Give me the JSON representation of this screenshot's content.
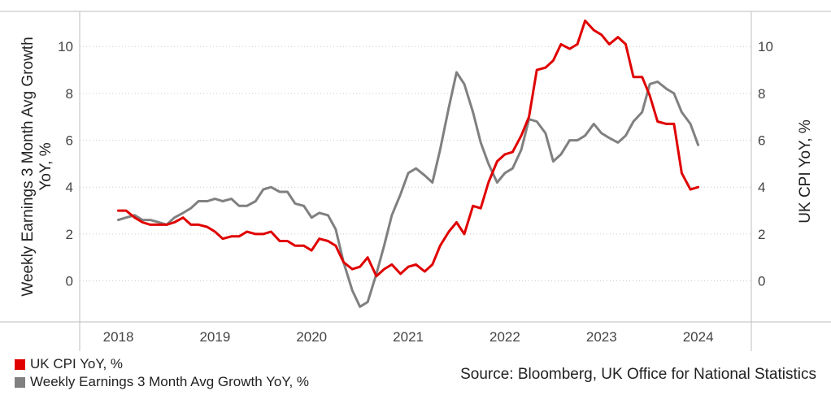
{
  "chart_data": {
    "type": "line",
    "left_axis": {
      "label": "Weekly Earnings 3 Month Avg Growth YoY, %",
      "ylim": [
        -1.75,
        11.5
      ],
      "ticks": [
        0,
        2,
        4,
        6,
        8,
        10
      ]
    },
    "right_axis": {
      "label": "UK CPI YoY, %",
      "ylim": [
        -1.75,
        11.5
      ],
      "ticks": [
        0,
        2,
        4,
        6,
        8,
        10
      ]
    },
    "x_axis": {
      "range": [
        2017.6,
        2024.55
      ],
      "ticks": [
        "2018",
        "2019",
        "2020",
        "2021",
        "2022",
        "2023",
        "2024"
      ]
    },
    "grid": true,
    "series": [
      {
        "name": "UK CPI YoY, %",
        "color": "#e00000",
        "axis": "right",
        "x": [
          2018.0,
          2018.08,
          2018.17,
          2018.25,
          2018.33,
          2018.42,
          2018.5,
          2018.58,
          2018.67,
          2018.75,
          2018.83,
          2018.92,
          2019.0,
          2019.08,
          2019.17,
          2019.25,
          2019.33,
          2019.42,
          2019.5,
          2019.58,
          2019.67,
          2019.75,
          2019.83,
          2019.92,
          2020.0,
          2020.08,
          2020.17,
          2020.25,
          2020.33,
          2020.42,
          2020.5,
          2020.58,
          2020.67,
          2020.75,
          2020.83,
          2020.92,
          2021.0,
          2021.08,
          2021.17,
          2021.25,
          2021.33,
          2021.42,
          2021.5,
          2021.58,
          2021.67,
          2021.75,
          2021.83,
          2021.92,
          2022.0,
          2022.08,
          2022.17,
          2022.25,
          2022.33,
          2022.42,
          2022.5,
          2022.58,
          2022.67,
          2022.75,
          2022.83,
          2022.92,
          2023.0,
          2023.08,
          2023.17,
          2023.25,
          2023.33,
          2023.42,
          2023.5,
          2023.58,
          2023.67,
          2023.75,
          2023.83,
          2023.92,
          2024.0
        ],
        "values": [
          3.0,
          3.0,
          2.7,
          2.5,
          2.4,
          2.4,
          2.4,
          2.5,
          2.7,
          2.4,
          2.4,
          2.3,
          2.1,
          1.8,
          1.9,
          1.9,
          2.1,
          2.0,
          2.0,
          2.1,
          1.7,
          1.7,
          1.5,
          1.5,
          1.3,
          1.8,
          1.7,
          1.5,
          0.8,
          0.5,
          0.6,
          1.0,
          0.2,
          0.5,
          0.7,
          0.3,
          0.6,
          0.7,
          0.4,
          0.7,
          1.5,
          2.1,
          2.5,
          2.0,
          3.2,
          3.1,
          4.2,
          5.1,
          5.4,
          5.5,
          6.2,
          7.0,
          9.0,
          9.1,
          9.4,
          10.1,
          9.9,
          10.1,
          11.1,
          10.7,
          10.5,
          10.1,
          10.4,
          10.1,
          8.7,
          8.7,
          7.9,
          6.8,
          6.7,
          6.7,
          4.6,
          3.9,
          4.0
        ]
      },
      {
        "name": "Weekly Earnings 3 Month Avg Growth YoY, %",
        "color": "#808080",
        "axis": "left",
        "x": [
          2018.0,
          2018.08,
          2018.17,
          2018.25,
          2018.33,
          2018.42,
          2018.5,
          2018.58,
          2018.67,
          2018.75,
          2018.83,
          2018.92,
          2019.0,
          2019.08,
          2019.17,
          2019.25,
          2019.33,
          2019.42,
          2019.5,
          2019.58,
          2019.67,
          2019.75,
          2019.83,
          2019.92,
          2020.0,
          2020.08,
          2020.17,
          2020.25,
          2020.33,
          2020.42,
          2020.5,
          2020.58,
          2020.67,
          2020.75,
          2020.83,
          2020.92,
          2021.0,
          2021.08,
          2021.17,
          2021.25,
          2021.33,
          2021.42,
          2021.5,
          2021.58,
          2021.67,
          2021.75,
          2021.83,
          2021.92,
          2022.0,
          2022.08,
          2022.17,
          2022.25,
          2022.33,
          2022.42,
          2022.5,
          2022.58,
          2022.67,
          2022.75,
          2022.83,
          2022.92,
          2023.0,
          2023.08,
          2023.17,
          2023.25,
          2023.33,
          2023.42,
          2023.5,
          2023.58,
          2023.67,
          2023.75,
          2023.83,
          2023.92,
          2024.0
        ],
        "values": [
          2.6,
          2.7,
          2.8,
          2.6,
          2.6,
          2.5,
          2.4,
          2.7,
          2.9,
          3.1,
          3.4,
          3.4,
          3.5,
          3.4,
          3.5,
          3.2,
          3.2,
          3.4,
          3.9,
          4.0,
          3.8,
          3.8,
          3.3,
          3.2,
          2.7,
          2.9,
          2.8,
          2.2,
          0.8,
          -0.4,
          -1.1,
          -0.9,
          0.3,
          1.5,
          2.8,
          3.7,
          4.6,
          4.8,
          4.5,
          4.2,
          5.6,
          7.4,
          8.9,
          8.4,
          7.2,
          5.9,
          5.0,
          4.2,
          4.6,
          4.8,
          5.6,
          6.9,
          6.8,
          6.3,
          5.1,
          5.4,
          6.0,
          6.0,
          6.2,
          6.7,
          6.3,
          6.1,
          5.9,
          6.2,
          6.8,
          7.2,
          8.4,
          8.5,
          8.2,
          8.0,
          7.2,
          6.7,
          5.8
        ]
      }
    ],
    "legend": {
      "position": "bottom-left"
    }
  },
  "source_text": "Source: Bloomberg, UK Office for National Statistics"
}
